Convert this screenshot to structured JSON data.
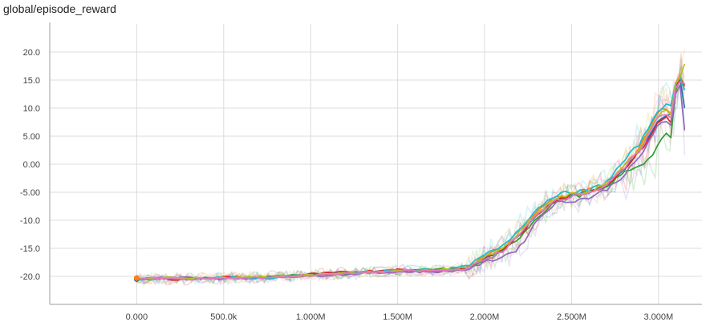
{
  "chart_data": {
    "type": "line",
    "title": "global/episode_reward",
    "xlabel": "",
    "ylabel": "",
    "xlim": [
      -500000,
      3250000
    ],
    "ylim": [
      -25,
      25
    ],
    "grid": true,
    "x_ticks": [
      {
        "value": 0,
        "label": "0.000"
      },
      {
        "value": 500000,
        "label": "500.0k"
      },
      {
        "value": 1000000,
        "label": "1.000M"
      },
      {
        "value": 1500000,
        "label": "1.500M"
      },
      {
        "value": 2000000,
        "label": "2.000M"
      },
      {
        "value": 2500000,
        "label": "2.500M"
      },
      {
        "value": 3000000,
        "label": "3.000M"
      }
    ],
    "y_ticks": [
      {
        "value": 20,
        "label": "20.0"
      },
      {
        "value": 15,
        "label": "15.0"
      },
      {
        "value": 10,
        "label": "10.0"
      },
      {
        "value": 5,
        "label": "5.00"
      },
      {
        "value": 0,
        "label": "0.00"
      },
      {
        "value": -5,
        "label": "-5.00"
      },
      {
        "value": -10,
        "label": "-10.0"
      },
      {
        "value": -15,
        "label": "-15.0"
      },
      {
        "value": -20,
        "label": "-20.0"
      }
    ],
    "x": [
      0,
      250000,
      500000,
      750000,
      1000000,
      1250000,
      1500000,
      1750000,
      1900000,
      2000000,
      2100000,
      2200000,
      2300000,
      2400000,
      2500000,
      2600000,
      2700000,
      2800000,
      2900000,
      2950000,
      3000000,
      3050000,
      3080000,
      3100000,
      3130000,
      3150000
    ],
    "series": [
      {
        "color": "#1f77b4",
        "values": [
          -20.5,
          -20.4,
          -20.3,
          -20.2,
          -19.8,
          -19.4,
          -19.0,
          -18.9,
          -18.5,
          -17.0,
          -15.5,
          -12.5,
          -9.0,
          -6.5,
          -5.5,
          -5.0,
          -4.0,
          -1.0,
          3.0,
          5.5,
          8.0,
          9.0,
          8.5,
          14.5,
          15.0,
          10.0
        ]
      },
      {
        "color": "#ff7f0e",
        "values": [
          -20.3,
          -20.5,
          -20.2,
          -20.1,
          -19.9,
          -19.3,
          -18.9,
          -19.0,
          -18.3,
          -16.5,
          -15.0,
          -12.0,
          -8.5,
          -6.0,
          -5.2,
          -4.5,
          -3.5,
          -0.5,
          3.5,
          6.5,
          9.5,
          10.0,
          9.0,
          15.0,
          16.0,
          14.0
        ]
      },
      {
        "color": "#2ca02c",
        "values": [
          -20.6,
          -20.3,
          -20.4,
          -20.0,
          -19.7,
          -19.5,
          -19.1,
          -18.7,
          -18.6,
          -17.2,
          -15.8,
          -13.0,
          -9.5,
          -6.8,
          -5.8,
          -5.2,
          -4.2,
          -1.5,
          0.0,
          1.0,
          3.5,
          5.5,
          4.5,
          14.0,
          15.5,
          14.0
        ]
      },
      {
        "color": "#d62728",
        "values": [
          -20.2,
          -20.6,
          -20.1,
          -20.3,
          -19.6,
          -19.2,
          -18.8,
          -19.1,
          -18.4,
          -16.8,
          -15.2,
          -12.8,
          -9.2,
          -6.3,
          -5.6,
          -4.8,
          -3.8,
          -0.8,
          2.5,
          5.0,
          7.5,
          8.5,
          7.0,
          14.5,
          15.5,
          14.0
        ]
      },
      {
        "color": "#9467bd",
        "values": [
          -20.4,
          -20.2,
          -20.5,
          -20.2,
          -19.9,
          -19.6,
          -19.2,
          -19.2,
          -18.8,
          -17.5,
          -16.5,
          -15.0,
          -10.0,
          -7.0,
          -6.5,
          -6.0,
          -4.5,
          -2.0,
          1.5,
          4.5,
          7.0,
          7.5,
          6.5,
          13.5,
          14.5,
          6.0
        ]
      },
      {
        "color": "#17becf",
        "values": [
          -20.5,
          -20.4,
          -20.2,
          -20.4,
          -19.8,
          -19.3,
          -18.9,
          -18.8,
          -18.2,
          -16.2,
          -14.8,
          -11.5,
          -8.0,
          -5.5,
          -5.0,
          -4.7,
          -3.2,
          0.5,
          4.0,
          7.0,
          10.0,
          10.5,
          10.0,
          15.0,
          16.0,
          13.0
        ]
      },
      {
        "color": "#bcbd22",
        "values": [
          -20.3,
          -20.3,
          -20.3,
          -20.1,
          -19.7,
          -19.4,
          -19.0,
          -18.9,
          -18.4,
          -16.6,
          -15.3,
          -12.2,
          -8.8,
          -6.2,
          -5.4,
          -4.9,
          -3.6,
          -0.3,
          3.2,
          6.0,
          9.0,
          9.5,
          8.8,
          14.8,
          15.8,
          18.0
        ]
      },
      {
        "color": "#e377c2",
        "values": [
          -20.4,
          -20.5,
          -20.4,
          -20.2,
          -19.8,
          -19.5,
          -19.1,
          -19.0,
          -18.6,
          -17.0,
          -15.6,
          -12.6,
          -9.1,
          -6.4,
          -5.7,
          -5.0,
          -3.9,
          -0.9,
          2.8,
          5.8,
          8.5,
          9.2,
          8.0,
          14.2,
          15.2,
          14.5
        ]
      }
    ]
  }
}
